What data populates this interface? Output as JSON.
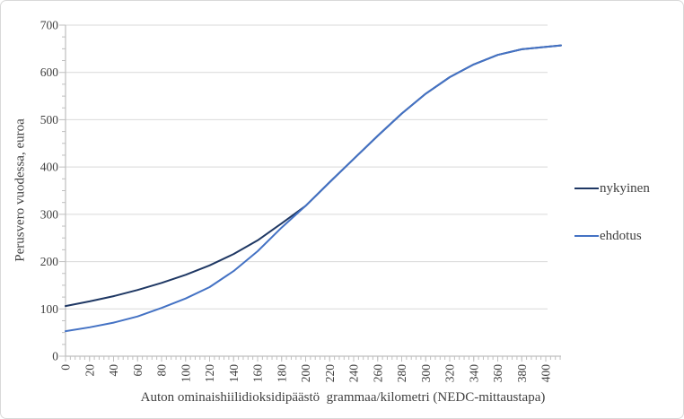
{
  "chart_data": {
    "type": "line",
    "title": "",
    "xlabel": "Auton ominaishiilidioksidipäästö  grammaa/kilometri (NEDC-mittaustapa)",
    "ylabel": "Perusvero vuodessa, euroa",
    "x": [
      0,
      20,
      40,
      60,
      80,
      100,
      120,
      140,
      160,
      180,
      200,
      220,
      240,
      260,
      280,
      300,
      320,
      340,
      360,
      380,
      400
    ],
    "series": [
      {
        "name": "nykyinen",
        "color": "#1f3864",
        "values": [
          106,
          116,
          127,
          140,
          155,
          172,
          192,
          216,
          245,
          281,
          318,
          368,
          417,
          466,
          513,
          555,
          590,
          617,
          637,
          649,
          654
        ]
      },
      {
        "name": "ehdotus",
        "color": "#4472c4",
        "values": [
          53,
          61,
          71,
          84,
          102,
          122,
          146,
          180,
          222,
          272,
          318,
          368,
          417,
          466,
          513,
          555,
          590,
          617,
          637,
          649,
          654
        ]
      }
    ],
    "xlim": [
      0,
      400
    ],
    "ylim": [
      0,
      700
    ],
    "x_tick_labels": [
      "0",
      "20",
      "40",
      "60",
      "80",
      "100",
      "120",
      "140",
      "160",
      "180",
      "200",
      "220",
      "240",
      "260",
      "280",
      "300",
      "320",
      "340",
      "360",
      "380",
      "400"
    ],
    "y_tick_labels": [
      "0",
      "100",
      "200",
      "300",
      "400",
      "500",
      "600",
      "700"
    ],
    "x_major_step": 20,
    "x_minor_step": 4,
    "y_major_step": 100,
    "y_minor_step": 25,
    "grid": "horizontal",
    "legend_position": "right",
    "grid_color": "#d9d9d9",
    "axis_color": "#bfbfbf",
    "text_color": "#404040",
    "line_width": 2
  }
}
